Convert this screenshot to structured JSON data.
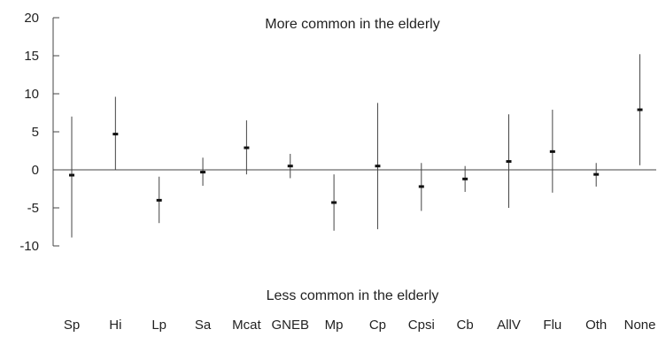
{
  "chart_data": {
    "type": "errorbar",
    "title": "",
    "xlabel": "",
    "ylabel": "",
    "ylim": [
      -10,
      20
    ],
    "yticks": [
      -10,
      -5,
      0,
      5,
      10,
      15,
      20
    ],
    "grid": false,
    "annotations": {
      "top": "More common in the elderly",
      "bottom": "Less common in the elderly"
    },
    "categories": [
      "Sp",
      "Hi",
      "Lp",
      "Sa",
      "Mcat",
      "GNEB",
      "Mp",
      "Cp",
      "Cpsi",
      "Cb",
      "AllV",
      "Flu",
      "Oth",
      "None"
    ],
    "values": [
      -0.7,
      4.7,
      -4.0,
      -0.3,
      2.9,
      0.5,
      -4.3,
      0.5,
      -2.2,
      -1.2,
      1.1,
      2.4,
      -0.6,
      7.9
    ],
    "lower": [
      -8.9,
      0.0,
      -7.0,
      -2.1,
      -0.6,
      -1.1,
      -8.0,
      -7.8,
      -5.4,
      -2.9,
      -5.0,
      -3.0,
      -2.2,
      0.6
    ],
    "upper": [
      7.0,
      9.6,
      -0.9,
      1.6,
      6.5,
      2.1,
      -0.6,
      8.8,
      0.9,
      0.5,
      7.3,
      7.9,
      0.9,
      15.2
    ]
  },
  "colors": {
    "axis": "#444444",
    "marker": "#111111",
    "text": "#222222"
  }
}
